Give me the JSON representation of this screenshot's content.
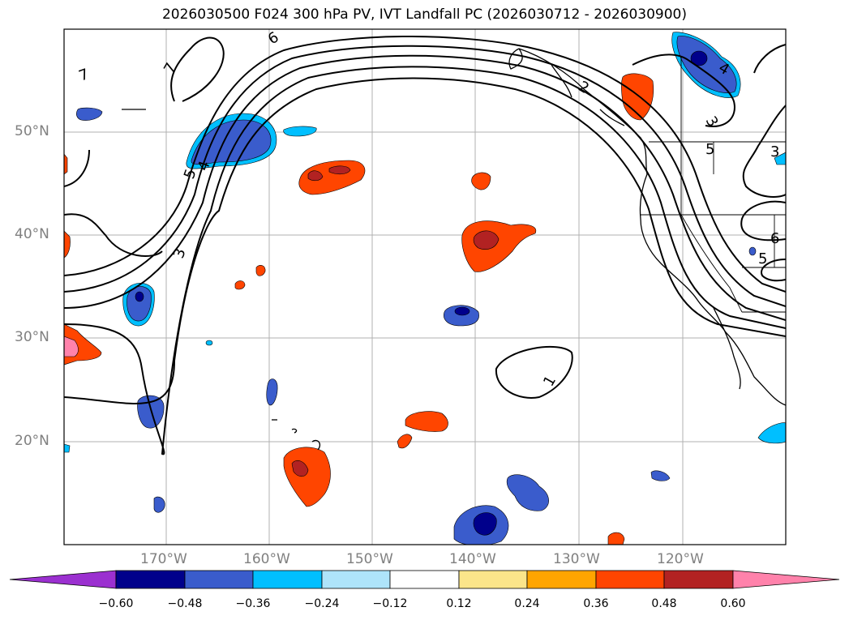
{
  "title": "2026030500 F024 300 hPa PV, IVT Landfall PC (2026030712 - 2026030900)",
  "lat_labels": [
    "50°N",
    "40°N",
    "30°N",
    "20°N"
  ],
  "lon_labels": [
    "170°W",
    "160°W",
    "150°W",
    "140°W",
    "130°W",
    "120°W"
  ],
  "contour_labels": [
    "7",
    "6",
    "7",
    "5",
    "4",
    "3",
    "5",
    "4",
    "3",
    "6",
    "5",
    "1",
    "2",
    "3"
  ],
  "colorbar": {
    "ticks": [
      "−0.60",
      "−0.48",
      "−0.36",
      "−0.24",
      "−0.12",
      "0.12",
      "0.24",
      "0.36",
      "0.48",
      "0.60"
    ],
    "colors": [
      "#9b30d0",
      "#00008b",
      "#3a5ccc",
      "#00bfff",
      "#aee4fa",
      "#ffffff",
      "#fbe58a",
      "#ffa500",
      "#ff4500",
      "#b22222",
      "#ff82ab"
    ]
  }
}
